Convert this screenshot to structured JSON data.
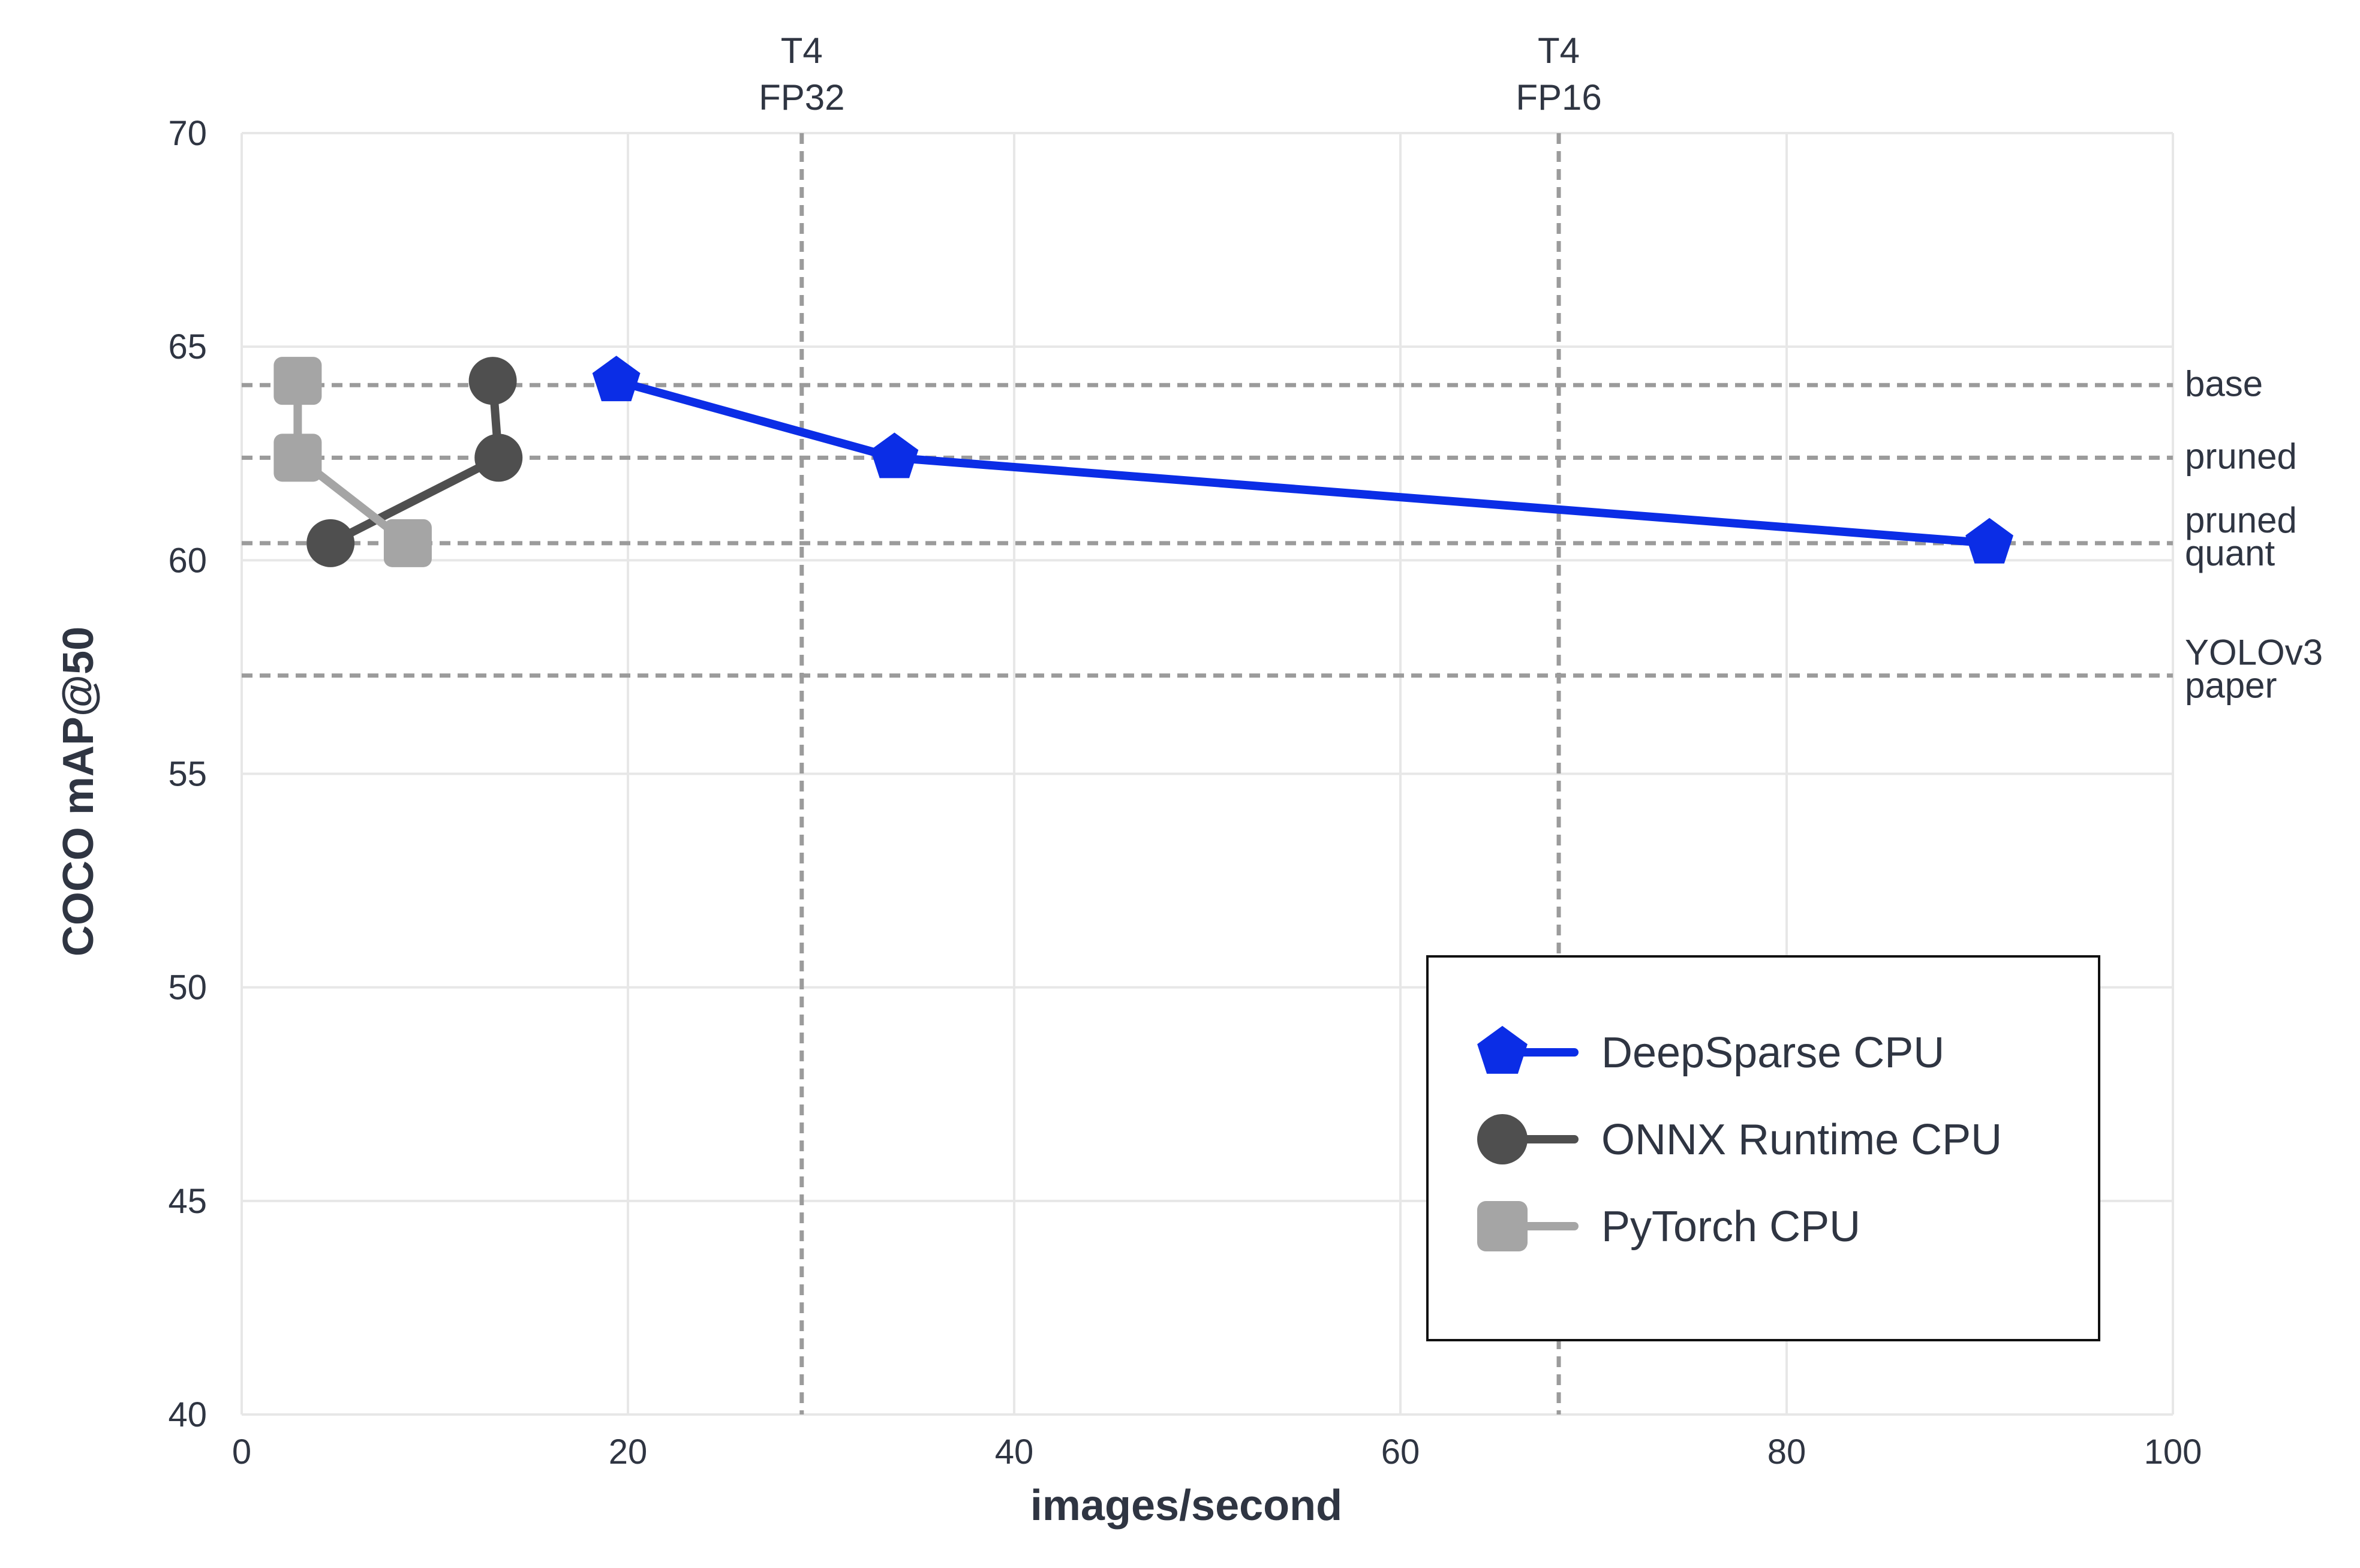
{
  "chart_data": {
    "type": "line",
    "title": "",
    "xlabel": "images/second",
    "ylabel": "COCO mAP@50",
    "xlim": [
      0,
      100
    ],
    "ylim": [
      40,
      70
    ],
    "x_ticks": [
      0,
      20,
      40,
      60,
      80,
      100
    ],
    "y_ticks": [
      40,
      45,
      50,
      55,
      60,
      65,
      70
    ],
    "grid": true,
    "legend_position": "bottom-right",
    "series": [
      {
        "name": "DeepSparse CPU",
        "color": "#0b2de6",
        "marker": "pentagon",
        "points": [
          {
            "x": 19.4,
            "y": 64.2
          },
          {
            "x": 33.8,
            "y": 62.4
          },
          {
            "x": 90.5,
            "y": 60.4
          }
        ]
      },
      {
        "name": "ONNX Runtime CPU",
        "color": "#4f4f4f",
        "marker": "circle",
        "points": [
          {
            "x": 13.0,
            "y": 64.2
          },
          {
            "x": 13.3,
            "y": 62.4
          },
          {
            "x": 4.6,
            "y": 60.4
          }
        ]
      },
      {
        "name": "PyTorch CPU",
        "color": "#a5a5a5",
        "marker": "square",
        "points": [
          {
            "x": 2.9,
            "y": 64.2
          },
          {
            "x": 2.9,
            "y": 62.4
          },
          {
            "x": 8.6,
            "y": 60.4
          }
        ]
      }
    ],
    "horizontal_references": [
      {
        "y": 64.1,
        "label": [
          "base"
        ]
      },
      {
        "y": 62.4,
        "label": [
          "pruned"
        ]
      },
      {
        "y": 60.4,
        "label": [
          "pruned",
          "quant"
        ]
      },
      {
        "y": 57.3,
        "label": [
          "YOLOv3",
          "paper"
        ]
      }
    ],
    "vertical_references": [
      {
        "x": 29.0,
        "label": [
          "T4",
          "FP32"
        ]
      },
      {
        "x": 68.2,
        "label": [
          "T4",
          "FP16"
        ]
      }
    ],
    "colors": {
      "grid": "#e7e7e7",
      "reference": "#9b9b9b",
      "text": "#2f3542"
    }
  }
}
